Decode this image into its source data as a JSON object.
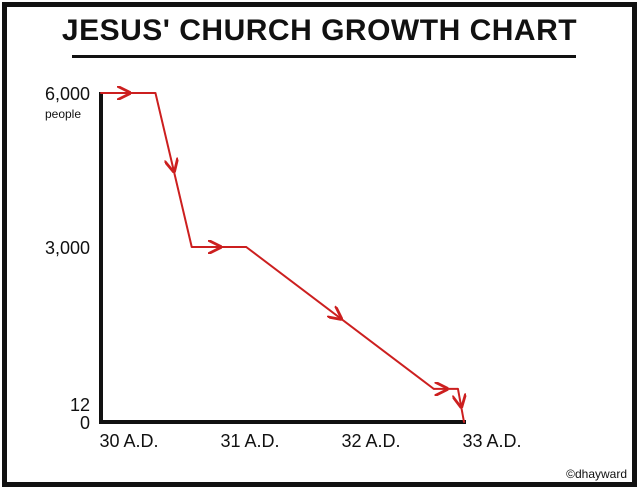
{
  "chart_data": {
    "type": "line",
    "title": "JESUS' CHURCH GROWTH CHART",
    "xlabel": "",
    "ylabel": "",
    "x_tick_labels": [
      "30 A.D.",
      "31 A.D.",
      "32 A.D.",
      "33 A.D."
    ],
    "y_tick_labels": [
      "6,000",
      "3,000",
      "12",
      "0"
    ],
    "y_tick_values": [
      6000,
      3000,
      12,
      0
    ],
    "y_unit": "people",
    "xlim": [
      30,
      33
    ],
    "ylim": [
      0,
      6000
    ],
    "series": [
      {
        "color": "#cc1f1f",
        "points": [
          {
            "x": 30.0,
            "y": 6000
          },
          {
            "x": 30.45,
            "y": 6000
          },
          {
            "x": 30.75,
            "y": 3000
          },
          {
            "x": 31.2,
            "y": 3000
          },
          {
            "x": 32.75,
            "y": 300
          },
          {
            "x": 32.95,
            "y": 300
          },
          {
            "x": 33.0,
            "y": 0
          }
        ]
      }
    ],
    "grid": false,
    "legend": "none"
  },
  "credit": "©dhayward"
}
